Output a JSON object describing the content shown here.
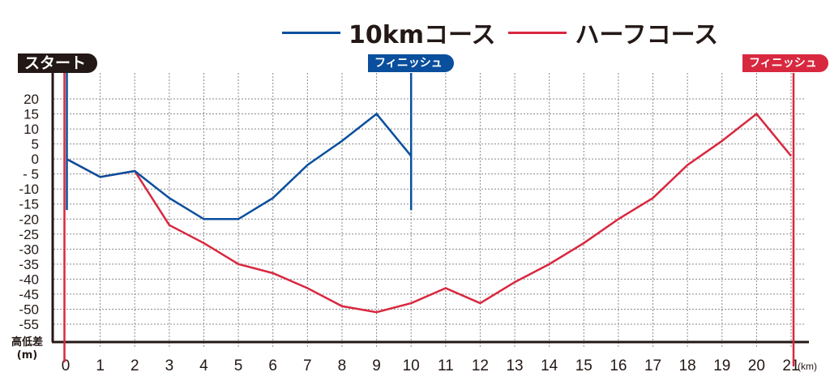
{
  "legend": {
    "series_10km": "10kmコース",
    "series_half": "ハーフコース"
  },
  "flags": {
    "start": "スタート",
    "finish_10km": "フィニッシュ",
    "finish_half": "フィニッシュ"
  },
  "axis": {
    "ylabel_line1": "高低差",
    "ylabel_line2": "(m)",
    "xunit": "(km)"
  },
  "colors": {
    "10km": "#0a4f9e",
    "half": "#d8283f",
    "axis": "#231815",
    "grid": "#888888"
  },
  "chart_data": {
    "type": "line",
    "title": "",
    "xlabel": "(km)",
    "ylabel": "高低差 (m)",
    "x": [
      0,
      1,
      2,
      3,
      4,
      5,
      6,
      7,
      8,
      9,
      10,
      11,
      12,
      13,
      14,
      15,
      16,
      17,
      18,
      19,
      20,
      21
    ],
    "xlim": [
      0,
      21
    ],
    "ylim": [
      -55,
      20
    ],
    "yticks": [
      20,
      15,
      10,
      5,
      0,
      -5,
      -10,
      -15,
      -20,
      -25,
      -30,
      -35,
      -40,
      -45,
      -50,
      -55
    ],
    "ytick_labels": [
      "20",
      "15",
      "10",
      "5",
      "0",
      "- 5",
      "-10",
      "-15",
      "-20",
      "-25",
      "-30",
      "-35",
      "-40",
      "-45",
      "-50",
      "-55"
    ],
    "xticks": [
      0,
      1,
      2,
      3,
      4,
      5,
      6,
      7,
      8,
      9,
      10,
      11,
      12,
      13,
      14,
      15,
      16,
      17,
      18,
      19,
      20,
      21
    ],
    "grid": true,
    "legend_position": "top",
    "series": [
      {
        "name": "10kmコース",
        "color": "#0a4f9e",
        "x": [
          0,
          1,
          2,
          3,
          4,
          5,
          6,
          7,
          8,
          9,
          10
        ],
        "values": [
          0,
          -6,
          -4,
          -13,
          -20,
          -20,
          -13,
          -2,
          6,
          15,
          1
        ]
      },
      {
        "name": "ハーフコース",
        "color": "#d8283f",
        "x": [
          0,
          1,
          2,
          3,
          4,
          5,
          6,
          7,
          8,
          9,
          10,
          11,
          12,
          13,
          14,
          15,
          16,
          17,
          18,
          19,
          20,
          21
        ],
        "values": [
          0,
          -6,
          -4,
          -22,
          -28,
          -35,
          -38,
          -43,
          -49,
          -51,
          -48,
          -43,
          -48,
          -41,
          -35,
          -28,
          -20,
          -13,
          -2,
          6,
          15,
          1
        ]
      }
    ],
    "annotations": [
      {
        "text": "スタート",
        "x": 0
      },
      {
        "text": "フィニッシュ",
        "x": 10,
        "series": "10kmコース"
      },
      {
        "text": "フィニッシュ",
        "x": 21,
        "series": "ハーフコース"
      }
    ]
  }
}
